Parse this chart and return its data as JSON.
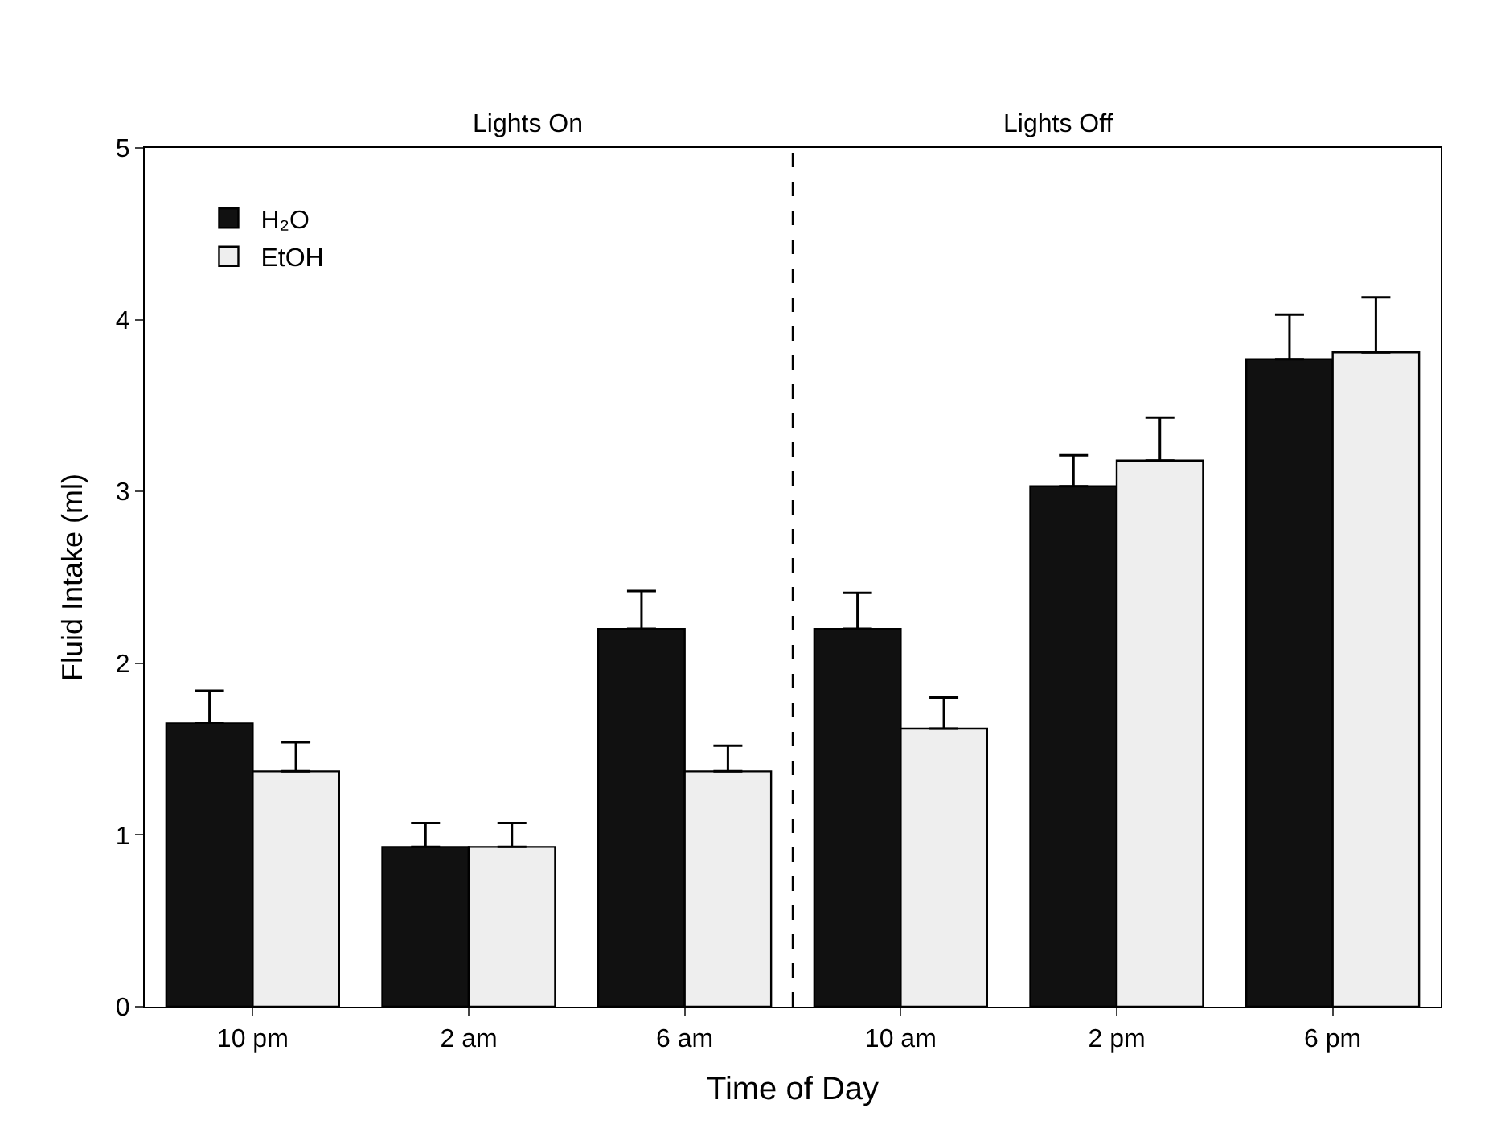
{
  "chart_data": {
    "type": "bar",
    "xlabel": "Time of Day",
    "ylabel": "Fluid Intake (ml)",
    "categories": [
      "10 pm",
      "2 am",
      "6 am",
      "10 am",
      "2 pm",
      "6 pm"
    ],
    "series": [
      {
        "name": "H₂O",
        "color": "#111111",
        "values": [
          1.65,
          0.93,
          2.2,
          2.2,
          3.03,
          3.77
        ],
        "errors": [
          [
            1.65,
            1.84
          ],
          [
            0.93,
            1.07
          ],
          [
            2.2,
            2.42
          ],
          [
            2.2,
            2.41
          ],
          [
            3.03,
            3.21
          ],
          [
            3.77,
            4.03
          ]
        ]
      },
      {
        "name": "EtOH",
        "color": "#eeeeee",
        "values": [
          1.37,
          0.93,
          1.37,
          1.62,
          3.18,
          3.81
        ],
        "errors": [
          [
            1.37,
            1.54
          ],
          [
            0.93,
            1.07
          ],
          [
            1.37,
            1.52
          ],
          [
            1.62,
            1.8
          ],
          [
            3.18,
            3.43
          ],
          [
            3.81,
            4.13
          ]
        ]
      }
    ],
    "ylim": [
      0,
      5
    ],
    "yticks": [
      0,
      1,
      2,
      3,
      4,
      5
    ],
    "legend": "top left",
    "annotations": [
      "Lights On",
      "Lights Off"
    ]
  }
}
